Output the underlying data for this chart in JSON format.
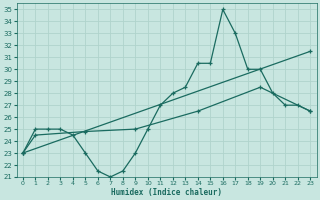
{
  "xlabel": "Humidex (Indice chaleur)",
  "background_color": "#c8e6e0",
  "grid_color": "#b0d4cc",
  "line_color": "#1a6b60",
  "xlim": [
    -0.5,
    23.5
  ],
  "ylim": [
    21,
    35.5
  ],
  "xticks": [
    0,
    1,
    2,
    3,
    4,
    5,
    6,
    7,
    8,
    9,
    10,
    11,
    12,
    13,
    14,
    15,
    16,
    17,
    18,
    19,
    20,
    21,
    22,
    23
  ],
  "yticks": [
    21,
    22,
    23,
    24,
    25,
    26,
    27,
    28,
    29,
    30,
    31,
    32,
    33,
    34,
    35
  ],
  "line1_x": [
    0,
    1,
    2,
    3,
    4,
    5,
    6,
    7,
    8,
    9,
    10,
    11,
    12,
    13,
    14,
    15,
    16,
    17,
    18,
    19,
    20,
    21,
    22,
    23
  ],
  "line1_y": [
    23.0,
    25.0,
    25.0,
    25.0,
    24.5,
    23.0,
    21.5,
    21.0,
    21.5,
    23.0,
    25.0,
    27.0,
    28.0,
    28.5,
    30.5,
    30.5,
    35.0,
    33.0,
    30.0,
    30.0,
    28.0,
    27.0,
    27.0,
    26.5
  ],
  "line2_x": [
    0,
    1,
    5,
    9,
    14,
    19,
    23
  ],
  "line2_y": [
    23.0,
    24.5,
    24.8,
    25.0,
    26.5,
    28.5,
    26.5
  ],
  "line3_x": [
    0,
    23
  ],
  "line3_y": [
    23.0,
    31.5
  ]
}
